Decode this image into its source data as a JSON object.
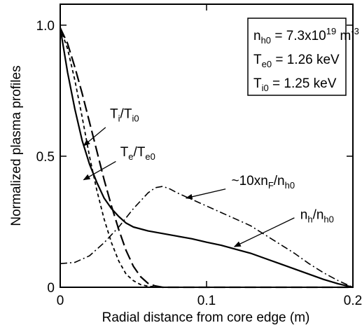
{
  "chart_data": {
    "type": "line",
    "xlabel": "Radial distance from core edge (m)",
    "ylabel": "Normalized plasma profiles",
    "xlim": [
      0,
      0.2
    ],
    "ylim": [
      0,
      1.08
    ],
    "xticks": [
      0,
      0.1,
      0.2
    ],
    "xtick_labels": [
      "0",
      "0.1",
      "0.2"
    ],
    "yticks": [
      0,
      0.5,
      1.0
    ],
    "ytick_labels": [
      "0",
      "0.5",
      "1.0"
    ],
    "grid": false,
    "legend": "none",
    "series": [
      {
        "name": "n_h/n_h0",
        "style": "solid",
        "x": [
          0,
          0.005,
          0.01,
          0.015,
          0.02,
          0.025,
          0.03,
          0.035,
          0.04,
          0.045,
          0.05,
          0.06,
          0.07,
          0.08,
          0.09,
          0.1,
          0.11,
          0.12,
          0.13,
          0.14,
          0.15,
          0.16,
          0.17,
          0.18,
          0.19,
          0.2
        ],
        "y": [
          0.99,
          0.82,
          0.68,
          0.56,
          0.47,
          0.4,
          0.34,
          0.3,
          0.27,
          0.245,
          0.23,
          0.215,
          0.205,
          0.195,
          0.185,
          0.172,
          0.16,
          0.145,
          0.13,
          0.11,
          0.09,
          0.07,
          0.05,
          0.03,
          0.013,
          0.0
        ]
      },
      {
        "name": "T_i/T_i0",
        "style": "longdash",
        "x": [
          0,
          0.005,
          0.01,
          0.015,
          0.02,
          0.025,
          0.03,
          0.035,
          0.04,
          0.045,
          0.05,
          0.055,
          0.06,
          0.065,
          0.07,
          0.08,
          0.1,
          0.15,
          0.2
        ],
        "y": [
          0.99,
          0.93,
          0.84,
          0.74,
          0.63,
          0.52,
          0.41,
          0.31,
          0.22,
          0.14,
          0.08,
          0.04,
          0.015,
          0.005,
          0.0,
          0.0,
          0.0,
          0.0,
          0.0
        ]
      },
      {
        "name": "T_e/T_e0",
        "style": "shortdash",
        "x": [
          0,
          0.005,
          0.01,
          0.015,
          0.02,
          0.025,
          0.03,
          0.035,
          0.04,
          0.045,
          0.05,
          0.055,
          0.06,
          0.07,
          0.08,
          0.1,
          0.15,
          0.2
        ],
        "y": [
          0.99,
          0.91,
          0.79,
          0.65,
          0.5,
          0.37,
          0.26,
          0.17,
          0.1,
          0.05,
          0.025,
          0.01,
          0.004,
          0.0,
          0.0,
          0.0,
          0.0,
          0.0
        ]
      },
      {
        "name": "~10xn_F/n_h0",
        "style": "dashdot",
        "x": [
          0,
          0.01,
          0.02,
          0.03,
          0.04,
          0.05,
          0.06,
          0.065,
          0.07,
          0.075,
          0.08,
          0.09,
          0.1,
          0.11,
          0.12,
          0.13,
          0.14,
          0.15,
          0.16,
          0.17,
          0.18,
          0.19,
          0.2
        ],
        "y": [
          0.09,
          0.095,
          0.12,
          0.17,
          0.23,
          0.3,
          0.36,
          0.38,
          0.385,
          0.375,
          0.36,
          0.335,
          0.31,
          0.285,
          0.26,
          0.235,
          0.2,
          0.165,
          0.13,
          0.09,
          0.055,
          0.025,
          0.0
        ]
      }
    ],
    "annotations": [
      {
        "id": "ti",
        "base": "T",
        "sub1": "i",
        "mid": "/T",
        "sub2": "i0",
        "arrow_from": [
          0.031,
          0.61
        ],
        "arrow_to": [
          0.016,
          0.54
        ],
        "label_at": [
          0.034,
          0.645
        ]
      },
      {
        "id": "te",
        "base": "T",
        "sub1": "e",
        "mid": "/T",
        "sub2": "e0",
        "arrow_from": [
          0.038,
          0.48
        ],
        "arrow_to": [
          0.016,
          0.41
        ],
        "label_at": [
          0.041,
          0.5
        ]
      },
      {
        "id": "nf",
        "base": "~10xn",
        "sub1": "F",
        "mid": "/n",
        "sub2": "h0",
        "arrow_from": [
          0.113,
          0.375
        ],
        "arrow_to": [
          0.086,
          0.34
        ],
        "label_at": [
          0.117,
          0.39
        ]
      },
      {
        "id": "nh",
        "base": "n",
        "sub1": "h",
        "mid": "/n",
        "sub2": "h0",
        "arrow_from": [
          0.16,
          0.265
        ],
        "arrow_to": [
          0.119,
          0.155
        ],
        "label_at": [
          0.164,
          0.26
        ]
      }
    ],
    "info_box": {
      "lines": [
        {
          "base": "n",
          "sub": "h0",
          "value": " = 7.3x10",
          "sup": "19",
          "unit": " m",
          "unit_sup": "-3"
        },
        {
          "base": "T",
          "sub": "e0",
          "value": " = 1.26 keV"
        },
        {
          "base": "T",
          "sub": "i0",
          "value": "  = 1.25 keV"
        }
      ]
    }
  }
}
